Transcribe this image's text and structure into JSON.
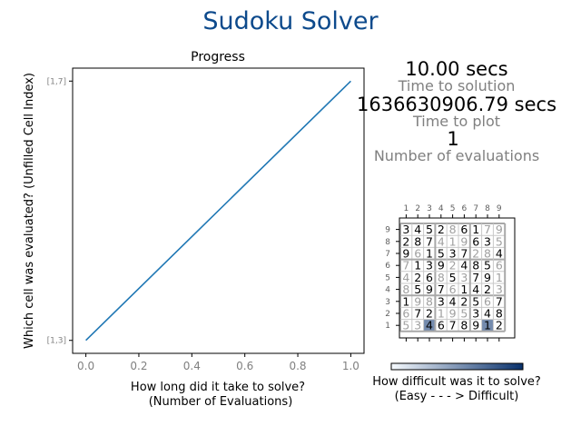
{
  "figure": {
    "title": "Sudoku Solver",
    "title_color": "#0d4a8c"
  },
  "stats": [
    {
      "value": "10.00 secs",
      "label": "Time to solution"
    },
    {
      "value": "1636630906.79 secs",
      "label": "Time to plot"
    },
    {
      "value": "1",
      "label": "Number of evaluations"
    }
  ],
  "colorbar": {
    "label_line1": "How difficult was it to solve?",
    "label_line2": "(Easy - - - > Difficult)",
    "cmap_low": "#f7fbff",
    "cmap_high": "#08306b"
  },
  "chart_data": [
    {
      "type": "line",
      "title": "Progress",
      "xlabel_line1": "How long did it take to solve?",
      "xlabel_line2": "(Number of Evaluations)",
      "ylabel": "Which cell was evaluated? (Unfilled Cell Index)",
      "xlim": [
        -0.05,
        1.05
      ],
      "ylim": [
        -0.05,
        1.05
      ],
      "xticks": [
        "0.0",
        "0.2",
        "0.4",
        "0.6",
        "0.8",
        "1.0"
      ],
      "yticks": [
        {
          "value": 0,
          "label": "[1,3]"
        },
        {
          "value": 1,
          "label": "[1,7]"
        }
      ],
      "series": [
        {
          "color": "#1f77b4",
          "x": [
            0,
            1
          ],
          "y": [
            0,
            1
          ]
        }
      ],
      "grid": false
    },
    {
      "type": "heatmap",
      "title": "",
      "col_labels": [
        "1",
        "2",
        "3",
        "4",
        "5",
        "6",
        "7",
        "8",
        "9"
      ],
      "row_labels": [
        "9",
        "8",
        "7",
        "6",
        "5",
        "4",
        "3",
        "2",
        "1"
      ],
      "grid_values": [
        [
          "3",
          "4",
          "5",
          "2",
          "8",
          "6",
          "1",
          "7",
          "9"
        ],
        [
          "2",
          "8",
          "7",
          "4",
          "1",
          "9",
          "6",
          "3",
          "5"
        ],
        [
          "9",
          "6",
          "1",
          "5",
          "3",
          "7",
          "2",
          "8",
          "4"
        ],
        [
          "7",
          "1",
          "3",
          "9",
          "2",
          "4",
          "8",
          "5",
          "6"
        ],
        [
          "4",
          "2",
          "6",
          "8",
          "5",
          "3",
          "7",
          "9",
          "1"
        ],
        [
          "8",
          "5",
          "9",
          "7",
          "6",
          "1",
          "4",
          "2",
          "3"
        ],
        [
          "1",
          "9",
          "8",
          "3",
          "4",
          "2",
          "5",
          "6",
          "7"
        ],
        [
          "6",
          "7",
          "2",
          "1",
          "9",
          "5",
          "3",
          "4",
          "8"
        ],
        [
          "5",
          "3",
          "4",
          "6",
          "7",
          "8",
          "9",
          "1",
          "2"
        ]
      ],
      "given_mask": [
        [
          1,
          1,
          1,
          1,
          0,
          1,
          1,
          0,
          0
        ],
        [
          1,
          1,
          1,
          0,
          0,
          0,
          1,
          1,
          0
        ],
        [
          1,
          0,
          1,
          1,
          1,
          1,
          0,
          0,
          1
        ],
        [
          0,
          1,
          1,
          1,
          0,
          1,
          1,
          1,
          0
        ],
        [
          0,
          1,
          1,
          0,
          1,
          0,
          1,
          1,
          0
        ],
        [
          0,
          1,
          1,
          1,
          0,
          1,
          1,
          1,
          0
        ],
        [
          1,
          0,
          0,
          1,
          1,
          1,
          1,
          0,
          1
        ],
        [
          0,
          1,
          1,
          0,
          0,
          0,
          1,
          1,
          1
        ],
        [
          0,
          0,
          1,
          1,
          1,
          1,
          1,
          1,
          1
        ]
      ],
      "difficulty": [
        [
          0,
          0,
          0,
          0,
          0,
          0,
          0,
          0,
          0
        ],
        [
          0,
          0,
          0,
          0,
          0,
          0,
          0,
          0,
          0
        ],
        [
          0,
          0,
          0,
          0,
          0,
          0,
          0,
          0,
          0
        ],
        [
          0,
          0,
          0,
          0,
          0,
          0,
          0,
          0,
          0
        ],
        [
          0,
          0,
          0,
          0,
          0,
          0,
          0,
          0,
          0
        ],
        [
          0,
          0,
          0,
          0,
          0,
          0,
          0,
          0,
          0
        ],
        [
          0,
          0,
          0,
          0,
          0,
          0,
          0,
          0,
          0
        ],
        [
          0,
          0,
          0,
          0,
          0,
          0,
          0,
          0,
          0
        ],
        [
          0,
          0,
          0.55,
          0,
          0,
          0,
          0,
          0.55,
          0
        ]
      ],
      "given_color": "#000000",
      "solved_color": "#a0a0a0"
    }
  ]
}
